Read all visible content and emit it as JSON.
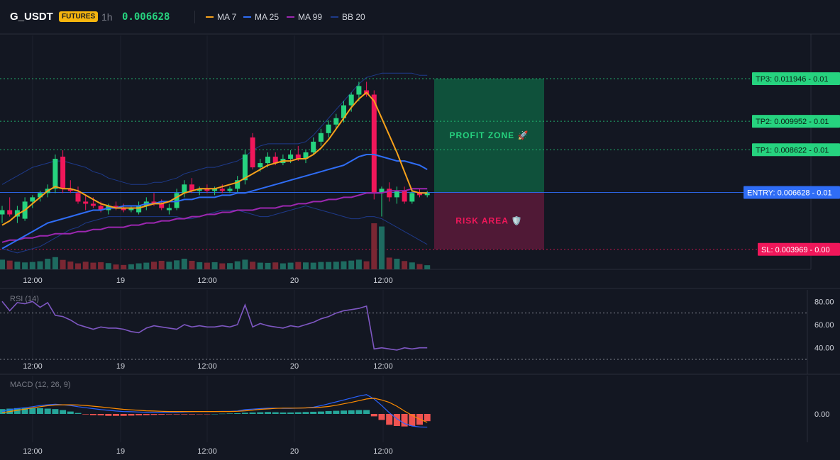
{
  "header": {
    "symbol": "G_USDT",
    "badge": "FUTURES",
    "timeframe": "1h",
    "price": "0.006628",
    "legend": [
      {
        "label": "MA 7",
        "color": "#f7a21b"
      },
      {
        "label": "MA 25",
        "color": "#2f6df6"
      },
      {
        "label": "MA 99",
        "color": "#9c27b0"
      },
      {
        "label": "BB 20",
        "color": "#1e3a8a"
      }
    ]
  },
  "colors": {
    "up": "#26d37f",
    "down": "#f0175a",
    "vol_up": "#1e6b60",
    "vol_down": "#7a2733",
    "grid": "#1e222d",
    "profit": "#0f5c3f",
    "risk": "#5c1a3a",
    "rsi": "#7e57c2",
    "macd_line": "#2962ff",
    "signal_line": "#ff8c00",
    "hist_pos": "#26a69a",
    "hist_neg": "#ef5350"
  },
  "chart_data": [
    {
      "type": "candlestick",
      "title": "G_USDT 1h",
      "x_tick_labels": [
        "12:00",
        "19",
        "12:00",
        "20",
        "12:00"
      ],
      "ylim": [
        0.0031,
        0.0138
      ],
      "candles": [
        [
          0.0056,
          0.006,
          0.0052,
          0.0058
        ],
        [
          0.0058,
          0.0064,
          0.0055,
          0.0056
        ],
        [
          0.0055,
          0.006,
          0.0052,
          0.0058
        ],
        [
          0.0054,
          0.0064,
          0.0053,
          0.0062
        ],
        [
          0.0062,
          0.0065,
          0.0059,
          0.0064
        ],
        [
          0.0064,
          0.0067,
          0.0062,
          0.0066
        ],
        [
          0.0066,
          0.007,
          0.0064,
          0.0068
        ],
        [
          0.0068,
          0.0084,
          0.0066,
          0.0082
        ],
        [
          0.0083,
          0.0086,
          0.0066,
          0.0068
        ],
        [
          0.0068,
          0.0072,
          0.0066,
          0.0067
        ],
        [
          0.0066,
          0.0069,
          0.0061,
          0.0062
        ],
        [
          0.0062,
          0.0065,
          0.0058,
          0.0061
        ],
        [
          0.0061,
          0.0064,
          0.0059,
          0.006
        ],
        [
          0.006,
          0.0062,
          0.0057,
          0.0058
        ],
        [
          0.0058,
          0.0061,
          0.0056,
          0.006
        ],
        [
          0.006,
          0.0062,
          0.0058,
          0.0059
        ],
        [
          0.0059,
          0.0061,
          0.0057,
          0.0058
        ],
        [
          0.0058,
          0.006,
          0.0057,
          0.0059
        ],
        [
          0.0057,
          0.0062,
          0.0056,
          0.006
        ],
        [
          0.006,
          0.0064,
          0.0058,
          0.0062
        ],
        [
          0.0062,
          0.0066,
          0.006,
          0.0061
        ],
        [
          0.0061,
          0.0063,
          0.0058,
          0.0059
        ],
        [
          0.0058,
          0.0061,
          0.0056,
          0.0059
        ],
        [
          0.0059,
          0.0068,
          0.0058,
          0.0066
        ],
        [
          0.0066,
          0.0072,
          0.0064,
          0.007
        ],
        [
          0.007,
          0.0073,
          0.0066,
          0.0067
        ],
        [
          0.0067,
          0.0069,
          0.0065,
          0.0068
        ],
        [
          0.0068,
          0.007,
          0.0066,
          0.0067
        ],
        [
          0.0067,
          0.0069,
          0.0065,
          0.0068
        ],
        [
          0.0068,
          0.007,
          0.0066,
          0.0067
        ],
        [
          0.0067,
          0.0069,
          0.0066,
          0.0068
        ],
        [
          0.0068,
          0.0074,
          0.0066,
          0.0072
        ],
        [
          0.0072,
          0.0086,
          0.007,
          0.0084
        ],
        [
          0.0092,
          0.0094,
          0.0077,
          0.0078
        ],
        [
          0.0078,
          0.0082,
          0.0076,
          0.008
        ],
        [
          0.008,
          0.0085,
          0.0078,
          0.0083
        ],
        [
          0.0083,
          0.0085,
          0.0079,
          0.008
        ],
        [
          0.008,
          0.0084,
          0.0079,
          0.0082
        ],
        [
          0.0082,
          0.0086,
          0.008,
          0.0084
        ],
        [
          0.0084,
          0.0088,
          0.0081,
          0.0082
        ],
        [
          0.0082,
          0.0086,
          0.008,
          0.0085
        ],
        [
          0.0085,
          0.0092,
          0.0084,
          0.009
        ],
        [
          0.009,
          0.0096,
          0.0088,
          0.0094
        ],
        [
          0.0094,
          0.01,
          0.0092,
          0.0098
        ],
        [
          0.0098,
          0.0103,
          0.0096,
          0.0101
        ],
        [
          0.0101,
          0.0109,
          0.0099,
          0.0107
        ],
        [
          0.0107,
          0.0113,
          0.0104,
          0.0112
        ],
        [
          0.0112,
          0.0118,
          0.0109,
          0.0116
        ],
        [
          0.0114,
          0.0118,
          0.0111,
          0.0112
        ],
        [
          0.0112,
          0.0114,
          0.0063,
          0.0066
        ],
        [
          0.0066,
          0.0069,
          0.0055,
          0.0068
        ],
        [
          0.0068,
          0.0071,
          0.0062,
          0.0064
        ],
        [
          0.0064,
          0.0069,
          0.0061,
          0.0067
        ],
        [
          0.0067,
          0.0069,
          0.0061,
          0.0062
        ],
        [
          0.0062,
          0.0068,
          0.0061,
          0.0066
        ],
        [
          0.0066,
          0.0068,
          0.0064,
          0.0065
        ],
        [
          0.0065,
          0.0067,
          0.0064,
          0.0066
        ]
      ],
      "volume": [
        4.2,
        3.8,
        3.3,
        3.0,
        3.2,
        3.5,
        4.6,
        5.3,
        4.1,
        3.4,
        2.6,
        3.3,
        2.9,
        3.1,
        2.7,
        2.1,
        1.9,
        2.2,
        2.6,
        2.9,
        3.3,
        3.7,
        3.3,
        3.9,
        4.6,
        3.7,
        3.1,
        2.9,
        3.1,
        2.6,
        2.7,
        3.5,
        4.2,
        3.3,
        2.9,
        2.8,
        3.0,
        2.6,
        2.9,
        3.2,
        3.0,
        2.9,
        3.2,
        3.2,
        3.3,
        3.5,
        3.8,
        4.2,
        3.5,
        20.0,
        18.6,
        5.1,
        4.6,
        3.6,
        3.0,
        2.3,
        1.8
      ],
      "ma7": [
        0.0051,
        0.0053,
        0.0056,
        0.0058,
        0.0061,
        0.0064,
        0.0067,
        0.0069,
        0.0068,
        0.0068,
        0.0067,
        0.0065,
        0.0063,
        0.0061,
        0.006,
        0.0059,
        0.0059,
        0.0059,
        0.0059,
        0.006,
        0.0061,
        0.0061,
        0.0062,
        0.0064,
        0.0066,
        0.0067,
        0.0068,
        0.0068,
        0.0068,
        0.0069,
        0.007,
        0.0071,
        0.0073,
        0.0075,
        0.0077,
        0.0079,
        0.008,
        0.0081,
        0.0081,
        0.0082,
        0.0082,
        0.0084,
        0.0087,
        0.0091,
        0.0096,
        0.0101,
        0.0106,
        0.011,
        0.0113,
        0.0109,
        0.0101,
        0.0093,
        0.0085,
        0.0076,
        0.0067,
        0.0066,
        0.0066
      ],
      "ma25": [
        0.004,
        0.0042,
        0.0044,
        0.0046,
        0.0048,
        0.005,
        0.0052,
        0.0053,
        0.0054,
        0.0055,
        0.0056,
        0.0057,
        0.0058,
        0.0058,
        0.0059,
        0.0059,
        0.006,
        0.006,
        0.006,
        0.0061,
        0.0061,
        0.0062,
        0.0062,
        0.0062,
        0.0063,
        0.0063,
        0.0064,
        0.0064,
        0.0064,
        0.0065,
        0.0065,
        0.0066,
        0.0066,
        0.0067,
        0.0068,
        0.0069,
        0.007,
        0.0071,
        0.0072,
        0.0073,
        0.0074,
        0.0075,
        0.0076,
        0.0077,
        0.0078,
        0.0079,
        0.0081,
        0.0083,
        0.0084,
        0.0084,
        0.0083,
        0.0082,
        0.0081,
        0.0081,
        0.008,
        0.0079,
        0.0077
      ],
      "ma99": [
        0.0043,
        0.0044,
        0.0044,
        0.0045,
        0.0045,
        0.0046,
        0.0046,
        0.0047,
        0.0047,
        0.0047,
        0.0048,
        0.0048,
        0.0049,
        0.0049,
        0.005,
        0.005,
        0.005,
        0.0051,
        0.0051,
        0.0052,
        0.0052,
        0.0053,
        0.0053,
        0.0054,
        0.0054,
        0.0055,
        0.0055,
        0.0056,
        0.0056,
        0.0057,
        0.0057,
        0.0058,
        0.0058,
        0.0058,
        0.0059,
        0.0059,
        0.0059,
        0.006,
        0.006,
        0.0061,
        0.0061,
        0.0062,
        0.0062,
        0.0063,
        0.0063,
        0.0064,
        0.0064,
        0.0065,
        0.0066,
        0.0066,
        0.0066,
        0.0067,
        0.0067,
        0.0067,
        0.0068,
        0.0068,
        0.0068
      ],
      "bb_upper": [
        0.007,
        0.0072,
        0.0074,
        0.0076,
        0.0078,
        0.0079,
        0.008,
        0.0081,
        0.0081,
        0.008,
        0.0079,
        0.0078,
        0.0076,
        0.0075,
        0.0073,
        0.0072,
        0.0071,
        0.007,
        0.007,
        0.007,
        0.0071,
        0.0071,
        0.0072,
        0.0073,
        0.0075,
        0.0076,
        0.0077,
        0.0078,
        0.0078,
        0.0079,
        0.008,
        0.0081,
        0.0083,
        0.0086,
        0.0088,
        0.0089,
        0.0089,
        0.0089,
        0.0089,
        0.0089,
        0.009,
        0.0093,
        0.0097,
        0.0101,
        0.0105,
        0.0109,
        0.0113,
        0.0117,
        0.012,
        0.0121,
        0.0122,
        0.0122,
        0.0122,
        0.0122,
        0.0122,
        0.0121,
        0.0121
      ],
      "bb_lower": [
        0.004,
        0.0039,
        0.0038,
        0.0039,
        0.004,
        0.0041,
        0.0043,
        0.0045,
        0.0047,
        0.0049,
        0.005,
        0.0052,
        0.0053,
        0.0054,
        0.0055,
        0.0055,
        0.0055,
        0.0055,
        0.0055,
        0.0055,
        0.0055,
        0.0055,
        0.0055,
        0.0055,
        0.0054,
        0.0054,
        0.0055,
        0.0056,
        0.0057,
        0.0058,
        0.0058,
        0.0058,
        0.0057,
        0.0056,
        0.0055,
        0.0055,
        0.0056,
        0.0057,
        0.0058,
        0.0059,
        0.006,
        0.0059,
        0.0058,
        0.0057,
        0.0056,
        0.0055,
        0.0054,
        0.0054,
        0.0055,
        0.0055,
        0.0054,
        0.0052,
        0.005,
        0.0048,
        0.0046,
        0.0044,
        0.0042
      ],
      "levels": [
        {
          "label": "TP3: 0.011946 - 0.01",
          "value": 0.011946,
          "color": "#26d37f",
          "text_color": "#0d1f16"
        },
        {
          "label": "TP2: 0.009952 - 0.01",
          "value": 0.009952,
          "color": "#26d37f",
          "text_color": "#0d1f16"
        },
        {
          "label": "TP1: 0.008622 - 0.01",
          "value": 0.008622,
          "color": "#26d37f",
          "text_color": "#0d1f16"
        },
        {
          "label": "ENTRY: 0.006628 - 0.01",
          "value": 0.006628,
          "color": "#2f6df6",
          "text_color": "#ffffff"
        },
        {
          "label": "SL: 0.003969 - 0.00",
          "value": 0.003969,
          "color": "#f0175a",
          "text_color": "#ffffff"
        }
      ],
      "zones": {
        "profit_label": "PROFIT ZONE 🚀",
        "risk_label": "RISK AREA 🛡️"
      }
    },
    {
      "type": "line",
      "title": "RSI (14)",
      "y_tick_labels": [
        "80.00",
        "60.00",
        "40.00"
      ],
      "ylim": [
        30,
        90
      ],
      "bands": [
        70,
        30
      ],
      "x_tick_labels": [
        "12:00",
        "19",
        "12:00",
        "20",
        "12:00"
      ],
      "values": [
        80,
        72,
        79,
        78,
        80,
        75,
        79,
        68,
        67,
        64,
        60,
        58,
        56,
        58,
        57,
        57,
        56,
        54,
        53,
        57,
        59,
        58,
        57,
        56,
        60,
        58,
        59,
        58,
        58,
        59,
        58,
        60,
        77,
        58,
        61,
        59,
        58,
        57,
        59,
        58,
        60,
        62,
        65,
        67,
        70,
        72,
        73,
        74,
        76,
        39,
        40,
        39,
        38,
        40,
        39,
        40,
        40
      ]
    },
    {
      "type": "bar",
      "title": "MACD (12, 26, 9)",
      "y_tick_labels": [
        "0.00"
      ],
      "x_tick_labels": [
        "12:00",
        "19",
        "12:00",
        "20",
        "12:00"
      ],
      "macd": [
        0.1,
        0.18,
        0.22,
        0.26,
        0.3,
        0.35,
        0.38,
        0.4,
        0.38,
        0.35,
        0.3,
        0.26,
        0.22,
        0.18,
        0.15,
        0.12,
        0.1,
        0.09,
        0.08,
        0.07,
        0.07,
        0.07,
        0.07,
        0.07,
        0.08,
        0.09,
        0.1,
        0.1,
        0.1,
        0.11,
        0.11,
        0.12,
        0.18,
        0.2,
        0.22,
        0.24,
        0.24,
        0.23,
        0.23,
        0.24,
        0.25,
        0.28,
        0.34,
        0.42,
        0.5,
        0.58,
        0.66,
        0.74,
        0.8,
        0.62,
        0.35,
        0.05,
        -0.2,
        -0.4,
        -0.5,
        -0.54,
        -0.55
      ],
      "signal": [
        0.05,
        0.1,
        0.15,
        0.2,
        0.25,
        0.3,
        0.34,
        0.37,
        0.38,
        0.38,
        0.37,
        0.35,
        0.32,
        0.29,
        0.26,
        0.22,
        0.19,
        0.17,
        0.15,
        0.13,
        0.12,
        0.11,
        0.1,
        0.1,
        0.1,
        0.1,
        0.1,
        0.1,
        0.1,
        0.1,
        0.1,
        0.11,
        0.13,
        0.16,
        0.19,
        0.21,
        0.23,
        0.24,
        0.24,
        0.24,
        0.25,
        0.26,
        0.28,
        0.31,
        0.36,
        0.42,
        0.48,
        0.55,
        0.62,
        0.65,
        0.58,
        0.48,
        0.32,
        0.12,
        -0.06,
        -0.22,
        -0.35
      ],
      "histogram": [
        0.2,
        0.22,
        0.24,
        0.24,
        0.24,
        0.24,
        0.22,
        0.2,
        0.16,
        0.1,
        0.04,
        -0.02,
        -0.05,
        -0.06,
        -0.08,
        -0.08,
        -0.08,
        -0.07,
        -0.06,
        -0.05,
        -0.04,
        -0.03,
        -0.02,
        -0.02,
        -0.02,
        -0.02,
        -0.01,
        -0.01,
        0.0,
        0.01,
        0.02,
        0.03,
        0.05,
        0.06,
        0.07,
        0.08,
        0.07,
        0.06,
        0.06,
        0.07,
        0.08,
        0.09,
        0.1,
        0.12,
        0.13,
        0.14,
        0.15,
        0.16,
        0.16,
        -0.1,
        -0.25,
        -0.45,
        -0.5,
        -0.52,
        -0.5,
        -0.45,
        -0.3
      ]
    }
  ]
}
